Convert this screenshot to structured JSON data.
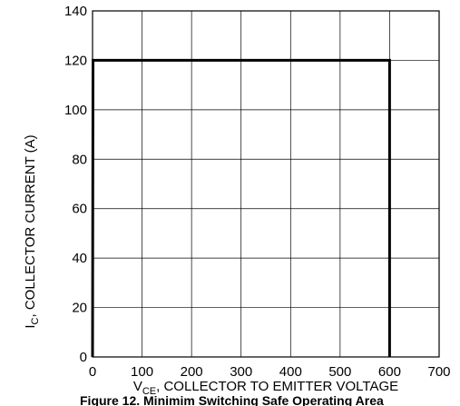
{
  "chart_data": {
    "type": "line",
    "title": "Figure 12. Minimim Switching Safe Operating Area",
    "xlabel": {
      "main": "V",
      "sub": "CE",
      "rest": ", COLLECTOR TO EMITTER VOLTAGE"
    },
    "ylabel": {
      "main": "I",
      "sub": "C",
      "rest": ", COLLECTOR  CURRENT (A)"
    },
    "xlim": [
      0,
      700
    ],
    "ylim": [
      0,
      140
    ],
    "x_ticks": [
      "0",
      "100",
      "200",
      "300",
      "400",
      "500",
      "600",
      "700"
    ],
    "y_ticks": [
      "0",
      "20",
      "40",
      "60",
      "80",
      "100",
      "120",
      "140"
    ],
    "grid": true,
    "series": [
      {
        "x": [
          0,
          1,
          600,
          600
        ],
        "y": [
          0,
          120,
          120,
          0
        ]
      }
    ]
  }
}
